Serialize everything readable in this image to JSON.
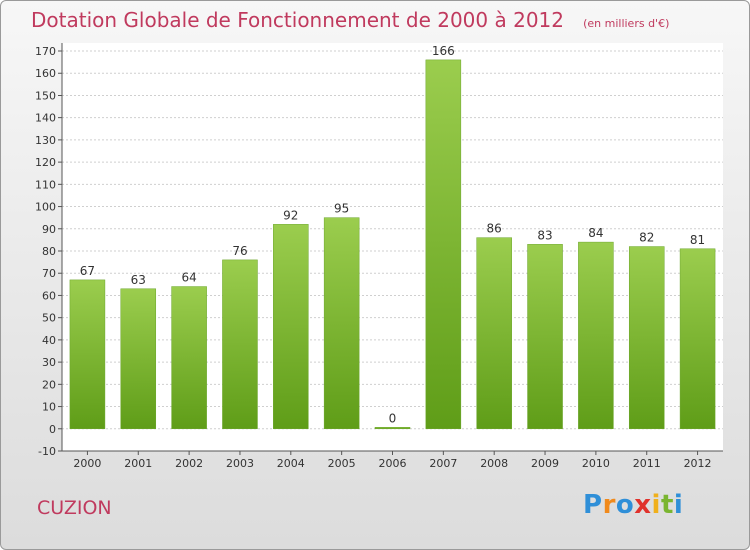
{
  "chart_data": {
    "type": "bar",
    "title": "Dotation Globale de Fonctionnement de 2000 à 2012",
    "unit_note": "(en milliers d'€)",
    "categories": [
      "2000",
      "2001",
      "2002",
      "2003",
      "2004",
      "2005",
      "2006",
      "2007",
      "2008",
      "2009",
      "2010",
      "2011",
      "2012"
    ],
    "values": [
      67,
      63,
      64,
      76,
      92,
      95,
      0,
      166,
      86,
      83,
      84,
      82,
      81
    ],
    "ylim": [
      -10,
      170
    ],
    "yticks": [
      -10,
      0,
      10,
      20,
      30,
      40,
      50,
      60,
      70,
      80,
      90,
      100,
      110,
      120,
      130,
      140,
      150,
      160,
      170
    ],
    "grid": true,
    "xlabel": "",
    "ylabel": "",
    "bar_color_top": "#9bcd4e",
    "bar_color_bottom": "#5f9d18",
    "title_color": "#c03a5e"
  },
  "footer": {
    "place_name": "CUZION",
    "logo_letters": [
      {
        "ch": "P",
        "color": "#2f8fd8"
      },
      {
        "ch": "r",
        "color": "#f08a1c"
      },
      {
        "ch": "o",
        "color": "#2f8fd8"
      },
      {
        "ch": "x",
        "color": "#e0322c"
      },
      {
        "ch": "i",
        "color": "#f0b01c"
      },
      {
        "ch": "t",
        "color": "#7ab530"
      },
      {
        "ch": "i",
        "color": "#2f8fd8"
      }
    ]
  }
}
